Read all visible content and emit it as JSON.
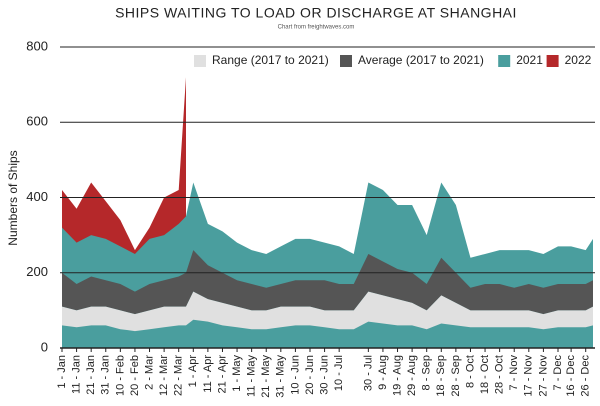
{
  "chart_data": {
    "type": "area",
    "title": "SHIPS WAITING TO LOAD OR DISCHARGE AT SHANGHAI",
    "subtitle": "Chart from freightwaves.com",
    "y_label": "Numbers of Ships",
    "x": [
      1,
      11,
      21,
      31,
      41,
      51,
      61,
      71,
      81,
      86,
      91,
      101,
      111,
      121,
      131,
      141,
      151,
      161,
      171,
      181,
      191,
      201,
      211,
      221,
      231,
      241,
      251,
      261,
      271,
      281,
      291,
      301,
      311,
      321,
      331,
      341,
      350,
      360,
      365
    ],
    "xlim": [
      1,
      365
    ],
    "xticks": [
      {
        "value": 1,
        "label": "1 - Jan"
      },
      {
        "value": 11,
        "label": "11 - Jan"
      },
      {
        "value": 21,
        "label": "21 - Jan"
      },
      {
        "value": 31,
        "label": "31 - Jan"
      },
      {
        "value": 41,
        "label": "10 - Feb"
      },
      {
        "value": 51,
        "label": "20 - Feb"
      },
      {
        "value": 61,
        "label": "2 - Mar"
      },
      {
        "value": 71,
        "label": "12 - Mar"
      },
      {
        "value": 81,
        "label": "22 - Mar"
      },
      {
        "value": 91,
        "label": "1 - Apr"
      },
      {
        "value": 101,
        "label": "11 - Apr"
      },
      {
        "value": 111,
        "label": "21 - Apr"
      },
      {
        "value": 121,
        "label": "1 - May"
      },
      {
        "value": 131,
        "label": "11 - May"
      },
      {
        "value": 141,
        "label": "21 - May"
      },
      {
        "value": 151,
        "label": "31 - May"
      },
      {
        "value": 161,
        "label": "10 - Jun"
      },
      {
        "value": 171,
        "label": "20 - Jun"
      },
      {
        "value": 181,
        "label": "30 - Jun"
      },
      {
        "value": 191,
        "label": "10 - Jul"
      },
      {
        "value": 211,
        "label": "30 - Jul"
      },
      {
        "value": 221,
        "label": "9 - Aug"
      },
      {
        "value": 231,
        "label": "19 - Aug"
      },
      {
        "value": 241,
        "label": "29 - Aug"
      },
      {
        "value": 251,
        "label": "8 - Sep"
      },
      {
        "value": 261,
        "label": "18 - Sep"
      },
      {
        "value": 271,
        "label": "28 - Sep"
      },
      {
        "value": 281,
        "label": "8 - Oct"
      },
      {
        "value": 291,
        "label": "18 - Oct"
      },
      {
        "value": 301,
        "label": "28 - Oct"
      },
      {
        "value": 311,
        "label": "7 - Nov"
      },
      {
        "value": 321,
        "label": "17 - Nov"
      },
      {
        "value": 331,
        "label": "27 - Nov"
      },
      {
        "value": 341,
        "label": "7 - Dec"
      },
      {
        "value": 350,
        "label": "16 - Dec"
      },
      {
        "value": 360,
        "label": "26 - Dec"
      }
    ],
    "ylim": [
      0,
      800
    ],
    "yticks": [
      0,
      200,
      400,
      600,
      800
    ],
    "grid": true,
    "legend": "top-right",
    "series": [
      {
        "name": "Range (2017 to 2021)",
        "color": "#e0e0e0",
        "low": [
          60,
          55,
          60,
          60,
          50,
          45,
          50,
          55,
          60,
          60,
          75,
          70,
          60,
          55,
          50,
          50,
          55,
          60,
          60,
          55,
          50,
          50,
          70,
          65,
          60,
          60,
          50,
          65,
          60,
          55,
          55,
          55,
          55,
          55,
          50,
          55,
          55,
          55,
          60
        ],
        "high": [
          110,
          100,
          110,
          110,
          100,
          90,
          100,
          110,
          110,
          110,
          150,
          130,
          120,
          110,
          100,
          100,
          110,
          110,
          110,
          100,
          100,
          100,
          150,
          140,
          130,
          120,
          100,
          140,
          120,
          100,
          100,
          100,
          100,
          100,
          90,
          100,
          100,
          100,
          110
        ]
      },
      {
        "name": "Average (2017 to 2021)",
        "color": "#555555",
        "low": [
          110,
          100,
          110,
          110,
          100,
          90,
          100,
          110,
          110,
          110,
          150,
          130,
          120,
          110,
          100,
          100,
          110,
          110,
          110,
          100,
          100,
          100,
          150,
          140,
          130,
          120,
          100,
          140,
          120,
          100,
          100,
          100,
          100,
          100,
          90,
          100,
          100,
          100,
          110
        ],
        "high": [
          200,
          170,
          190,
          180,
          170,
          150,
          170,
          180,
          190,
          200,
          260,
          220,
          200,
          180,
          170,
          160,
          170,
          180,
          180,
          180,
          170,
          170,
          250,
          230,
          210,
          200,
          170,
          240,
          200,
          160,
          170,
          170,
          160,
          170,
          160,
          170,
          170,
          170,
          180
        ]
      },
      {
        "name": "2021",
        "color": "#4a9e9e",
        "values": [
          320,
          280,
          300,
          290,
          270,
          250,
          290,
          300,
          330,
          350,
          440,
          330,
          310,
          280,
          260,
          250,
          270,
          290,
          290,
          280,
          270,
          250,
          440,
          420,
          380,
          380,
          300,
          440,
          380,
          240,
          250,
          260,
          260,
          260,
          250,
          270,
          270,
          260,
          290
        ]
      },
      {
        "name": "2022",
        "color": "#b5282a",
        "values": [
          420,
          370,
          440,
          390,
          340,
          260,
          320,
          400,
          420,
          720,
          null,
          null,
          null,
          null,
          null,
          null,
          null,
          null,
          null,
          null,
          null,
          null,
          null,
          null,
          null,
          null,
          null,
          null,
          null,
          null,
          null,
          null,
          null,
          null,
          null,
          null,
          null,
          null,
          null
        ]
      }
    ]
  }
}
